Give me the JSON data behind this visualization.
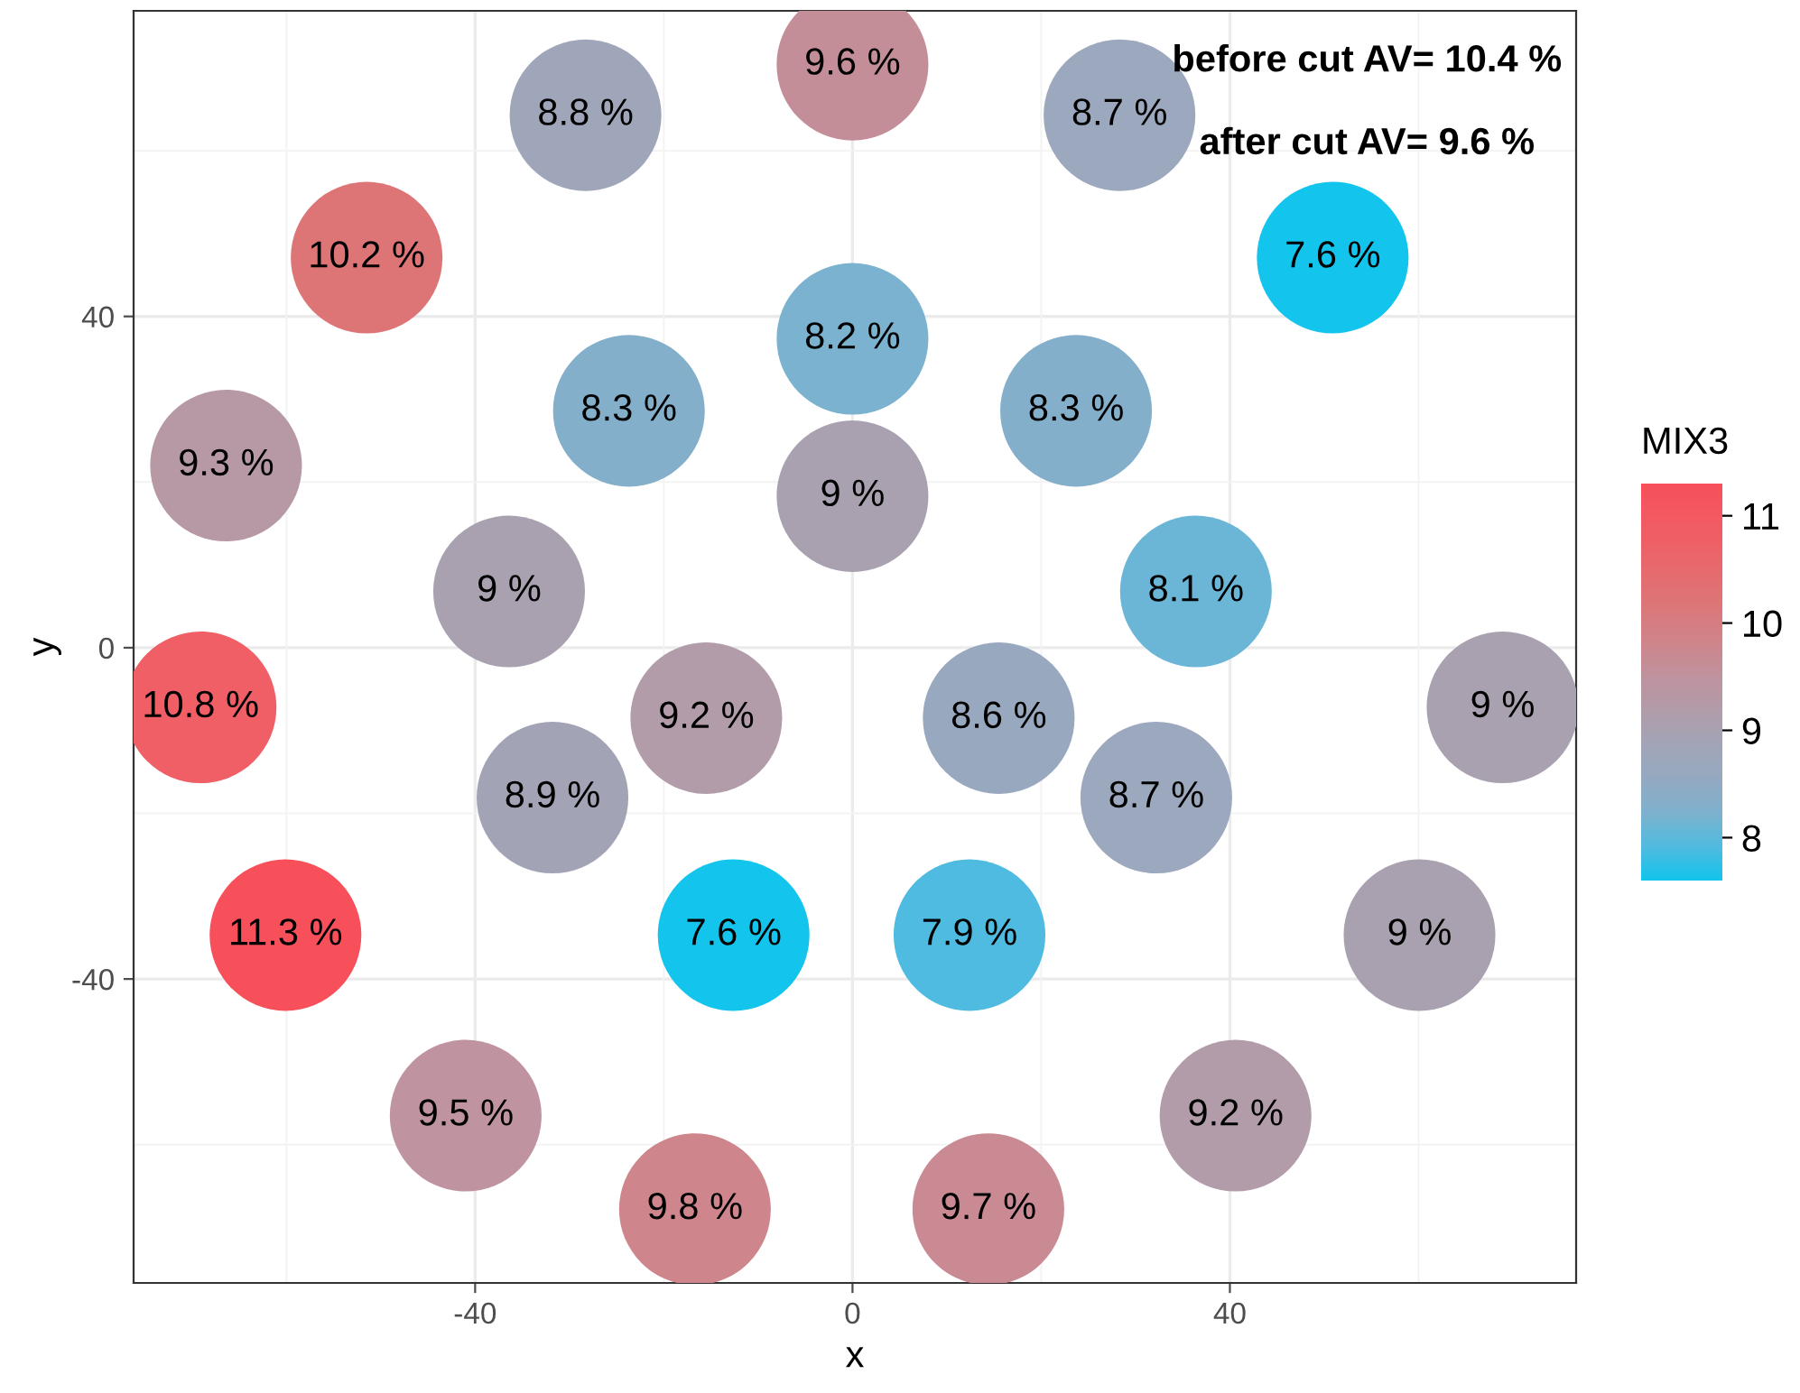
{
  "chart_data": {
    "type": "scatter",
    "xlabel": "x",
    "ylabel": "y",
    "clabel": "MIX3",
    "annotations": [
      "before cut AV= 10.4 %",
      "after cut AV= 9.6 %",
      {
        "text": "9.6 %",
        "x": 0,
        "y": 70.4
      },
      {
        "text": "8.8 %",
        "x": -28.3,
        "y": 64.3
      },
      {
        "text": "8.7 %",
        "x": 28.3,
        "y": 64.3
      },
      {
        "text": "10.2 %",
        "x": -51.5,
        "y": 47.1
      },
      {
        "text": "7.6 %",
        "x": 50.9,
        "y": 47.1
      },
      {
        "text": "8.2 %",
        "x": 0,
        "y": 37.3
      },
      {
        "text": "8.3 %",
        "x": -23.7,
        "y": 28.6
      },
      {
        "text": "8.3 %",
        "x": 23.7,
        "y": 28.6
      },
      {
        "text": "9.3 %",
        "x": -66.4,
        "y": 22.0
      },
      {
        "text": "9 %",
        "x": 0,
        "y": 18.3
      },
      {
        "text": "9 %",
        "x": -36.4,
        "y": 6.8
      },
      {
        "text": "8.1 %",
        "x": 36.4,
        "y": 6.8
      },
      {
        "text": "10.8 %",
        "x": -69.1,
        "y": -7.2
      },
      {
        "text": "9.2 %",
        "x": -15.5,
        "y": -8.5
      },
      {
        "text": "8.6 %",
        "x": 15.5,
        "y": -8.5
      },
      {
        "text": "9 %",
        "x": 68.9,
        "y": -7.2
      },
      {
        "text": "8.9 %",
        "x": -31.8,
        "y": -18.1
      },
      {
        "text": "8.7 %",
        "x": 32.2,
        "y": -18.1
      },
      {
        "text": "11.3 %",
        "x": -60.1,
        "y": -34.7
      },
      {
        "text": "7.6 %",
        "x": -12.6,
        "y": -34.7
      },
      {
        "text": "7.9 %",
        "x": 12.4,
        "y": -34.7
      },
      {
        "text": "9 %",
        "x": 60.1,
        "y": -34.7
      },
      {
        "text": "9.5 %",
        "x": -41.0,
        "y": -56.5
      },
      {
        "text": "9.2 %",
        "x": 40.6,
        "y": -56.5
      },
      {
        "text": "9.8 %",
        "x": -16.7,
        "y": -67.8
      },
      {
        "text": "9.7 %",
        "x": 14.4,
        "y": -67.8
      }
    ],
    "x": [
      0,
      -28.3,
      28.3,
      -51.5,
      50.9,
      0,
      -23.7,
      23.7,
      -66.4,
      0,
      -36.4,
      36.4,
      -69.1,
      -15.5,
      15.5,
      68.9,
      -31.8,
      32.2,
      -60.1,
      -12.6,
      12.4,
      60.1,
      -41.0,
      40.6,
      -16.7,
      14.4
    ],
    "values": [
      70.4,
      64.3,
      64.3,
      47.1,
      47.1,
      37.3,
      28.6,
      28.6,
      22.0,
      18.3,
      6.8,
      6.8,
      -7.2,
      -8.5,
      -8.5,
      -7.2,
      -18.1,
      -18.1,
      -34.7,
      -34.7,
      -34.7,
      -34.7,
      -56.5,
      -56.5,
      -67.8,
      -67.8
    ],
    "cvalues": [
      9.6,
      8.8,
      8.7,
      10.2,
      7.6,
      8.2,
      8.3,
      8.3,
      9.3,
      9,
      9,
      8.1,
      10.8,
      9.2,
      8.6,
      9,
      8.9,
      8.7,
      11.3,
      7.6,
      7.9,
      9,
      9.5,
      9.2,
      9.8,
      9.7
    ],
    "colors": [
      "#c48e98",
      "#9fa6ba",
      "#9ba8bd",
      "#dd7577",
      "#13c4ec",
      "#7bb2cf",
      "#84afcb",
      "#84afcb",
      "#b798a5",
      "#a9a1b0",
      "#a9a1b0",
      "#6bb6d6",
      "#ef5f65",
      "#b39caa",
      "#98a8bf",
      "#a9a1b0",
      "#a3a3b6",
      "#9ba8bd",
      "#f7505a",
      "#13c4ec",
      "#4fbbe0",
      "#a9a1b0",
      "#bf93a0",
      "#b39caa",
      "#ce868c",
      "#c98a93"
    ],
    "clim": [
      7.6,
      11.3
    ],
    "cticks": [
      8,
      9,
      10,
      11
    ],
    "xlim": [
      -76.2,
      76.7
    ],
    "ylim": [
      -76.7,
      76.9
    ],
    "xticks": [
      -40,
      0,
      40
    ],
    "yticks": [
      -40,
      0,
      40
    ],
    "grid": true,
    "marker": "circle"
  }
}
